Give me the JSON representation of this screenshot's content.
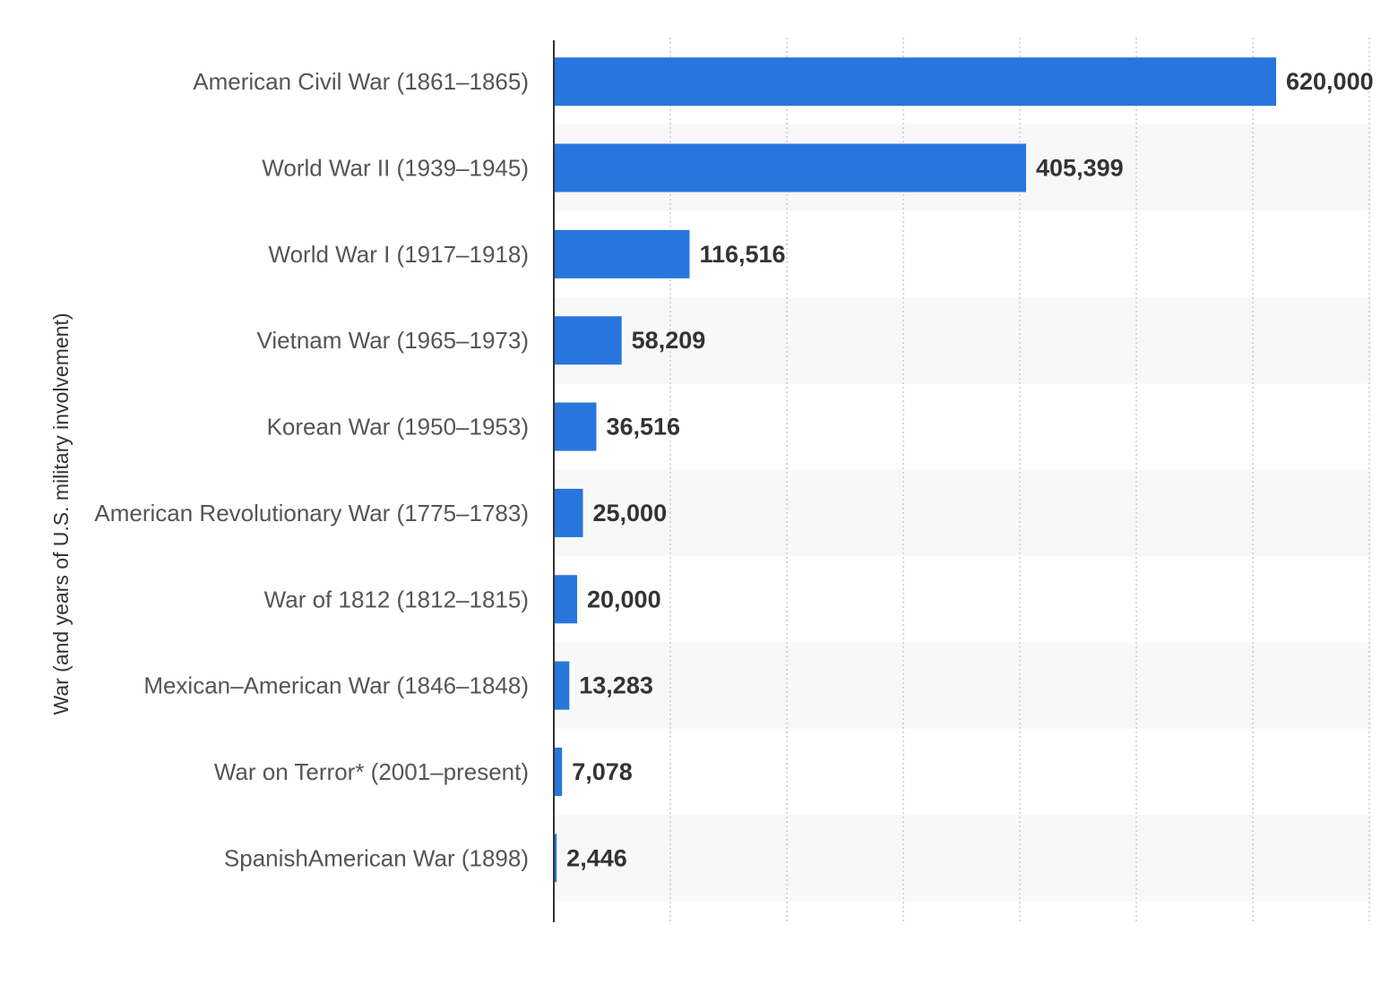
{
  "chart_data": {
    "type": "bar",
    "orientation": "horizontal",
    "categories": [
      "American Civil War (1861–1865)",
      "World War II (1939–1945)",
      "World War I (1917–1918)",
      "Vietnam War (1965–1973)",
      "Korean War (1950–1953)",
      "American Revolutionary War (1775–1783)",
      "War of 1812 (1812–1815)",
      "Mexican–American War (1846–1848)",
      "War on Terror* (2001–present)",
      "SpanishAmerican War (1898)"
    ],
    "values": [
      620000,
      405399,
      116516,
      58209,
      36516,
      25000,
      20000,
      13283,
      7078,
      2446
    ],
    "data_labels": [
      "620,000",
      "405,399",
      "116,516",
      "58,209",
      "36,516",
      "25,000",
      "20,000",
      "13,283",
      "7,078",
      "2,446"
    ],
    "ylabel": "War (and years of U.S. military involvement)",
    "xlim": [
      0,
      700000
    ],
    "x_grid_step": 100000,
    "grid": true,
    "colors": {
      "bar": "#2876dd",
      "row_band": "#f8f8f8",
      "gridline": "#cccccc",
      "axis": "#333333",
      "category_text": "#555555",
      "label_text": "#333333",
      "axis_title_text": "#333333"
    }
  }
}
